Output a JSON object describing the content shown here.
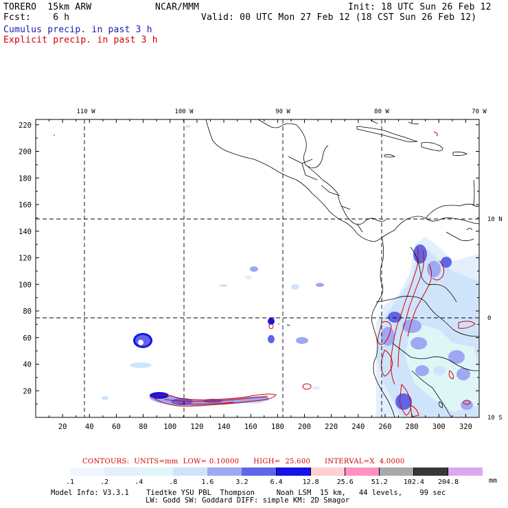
{
  "header": {
    "model": "TORERO  15km ARW",
    "org": "NCAR/MMM",
    "init": "Init: 18 UTC Sun 26 Feb 12",
    "fcst": "Fcst:    6 h",
    "valid": "Valid: 00 UTC Mon 27 Feb 12 (18 CST Sun 26 Feb 12)",
    "cumulus_label": "Cumulus precip. in past 3 h",
    "explicit_label": "Explicit precip. in past 3 h"
  },
  "colors": {
    "cumulus": "#1a1aa8",
    "explicit": "#d00000"
  },
  "map": {
    "lon_labels": [
      "110 W",
      "100 W",
      "90 W",
      "80 W",
      "70 W"
    ],
    "lat_labels": [
      "10 N",
      "0",
      "10 S"
    ],
    "y_ticks": [
      "220",
      "200",
      "180",
      "160",
      "140",
      "120",
      "100",
      "80",
      "60",
      "40",
      "20"
    ],
    "x_ticks": [
      "20",
      "40",
      "60",
      "80",
      "100",
      "120",
      "140",
      "160",
      "180",
      "200",
      "220",
      "240",
      "260",
      "280",
      "300",
      "320"
    ]
  },
  "legend": {
    "contours": "CONTOURS:  UNITS=mm  LOW= 0.10000      HIGH=  25.600      INTERVAL=X  4.0000",
    "units": "mm",
    "levels": [
      ".1",
      ".2",
      ".4",
      ".8",
      "1.6",
      "3.2",
      "6.4",
      "12.8",
      "25.6",
      "51.2",
      "102.4",
      "204.8"
    ],
    "colors": [
      "#ffffff",
      "#f2f7ff",
      "#e3effd",
      "#dff6f6",
      "#cfe4fb",
      "#9fa8f2",
      "#5f66e8",
      "#1414e6",
      "#ffd0d0",
      "#ff90c0",
      "#a8a8a8",
      "#383838",
      "#d9a8f0"
    ]
  },
  "footer": {
    "line1": "Model Info: V3.3.1    Tiedtke YSU PBL  Thompson     Noah LSM  15 km,   44 levels,    99 sec",
    "line2": "LW: Godd SW: Goddard DIFF: simple KM: 2D Smagor"
  }
}
